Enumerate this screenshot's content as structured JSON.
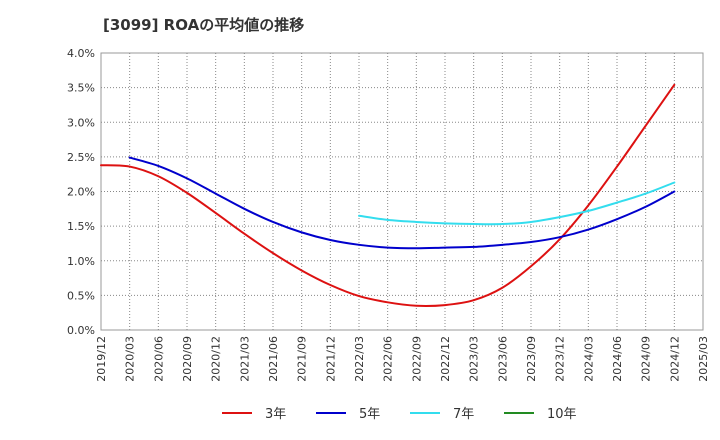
{
  "chart_data": {
    "type": "line",
    "title": "[3099]  ROAの平均値の推移",
    "xlabel": "",
    "ylabel": "",
    "x": [
      "2019/12",
      "2020/03",
      "2020/06",
      "2020/09",
      "2020/12",
      "2021/03",
      "2021/06",
      "2021/09",
      "2021/12",
      "2022/03",
      "2022/06",
      "2022/09",
      "2022/12",
      "2023/03",
      "2023/06",
      "2023/09",
      "2023/12",
      "2024/03",
      "2024/06",
      "2024/09",
      "2024/12",
      "2025/03"
    ],
    "ylim": [
      0,
      4.0
    ],
    "yticks": [
      "0.0%",
      "0.5%",
      "1.0%",
      "1.5%",
      "2.0%",
      "2.5%",
      "3.0%",
      "3.5%",
      "4.0%"
    ],
    "y_unit": "%",
    "grid": true,
    "legend_position": "bottom",
    "series": [
      {
        "name": "3年",
        "color": "#dd1111",
        "values": [
          2.38,
          2.36,
          2.22,
          1.98,
          1.69,
          1.39,
          1.11,
          0.86,
          0.65,
          0.49,
          0.4,
          0.35,
          0.36,
          0.43,
          0.61,
          0.92,
          1.31,
          1.8,
          2.36,
          2.95,
          3.54,
          null
        ]
      },
      {
        "name": "5年",
        "color": "#0000cc",
        "values": [
          null,
          2.49,
          2.37,
          2.19,
          1.97,
          1.75,
          1.56,
          1.41,
          1.3,
          1.23,
          1.19,
          1.18,
          1.19,
          1.2,
          1.23,
          1.27,
          1.34,
          1.45,
          1.6,
          1.78,
          2.0,
          null
        ]
      },
      {
        "name": "7年",
        "color": "#33ddee",
        "values": [
          null,
          null,
          null,
          null,
          null,
          null,
          null,
          null,
          null,
          1.65,
          1.59,
          1.56,
          1.54,
          1.53,
          1.53,
          1.56,
          1.63,
          1.72,
          1.84,
          1.97,
          2.13,
          null
        ]
      },
      {
        "name": "10年",
        "color": "#228b22",
        "values": [
          null,
          null,
          null,
          null,
          null,
          null,
          null,
          null,
          null,
          null,
          null,
          null,
          null,
          null,
          null,
          null,
          null,
          null,
          null,
          null,
          null,
          null
        ]
      }
    ]
  }
}
